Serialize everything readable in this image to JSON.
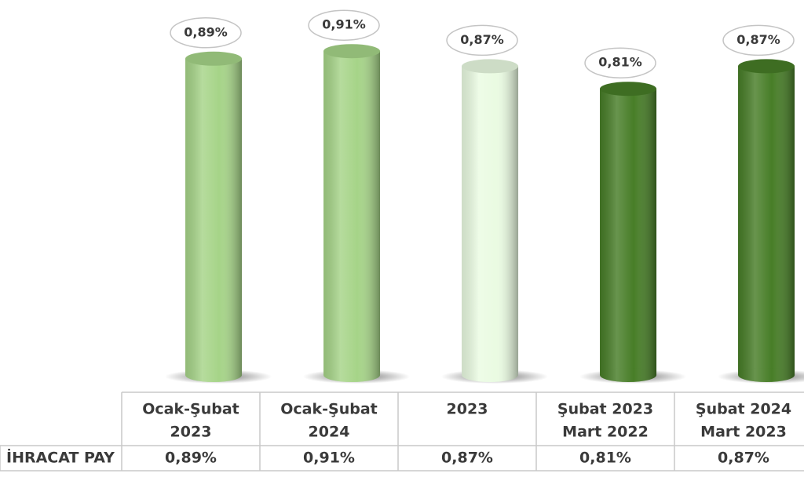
{
  "chart_data": {
    "type": "bar",
    "categories": [
      [
        "Ocak-Şubat",
        "2023"
      ],
      [
        "Ocak-Şubat",
        "2024"
      ],
      [
        "2023"
      ],
      [
        "Şubat 2023",
        "Mart 2022"
      ],
      [
        "Şubat 2024",
        "Mart 2023"
      ]
    ],
    "row_label": "İHRACAT PAY",
    "values": [
      0.89,
      0.91,
      0.87,
      0.81,
      0.87
    ],
    "value_labels": [
      "0,89%",
      "0,91%",
      "0,87%",
      "0,81%",
      "0,87%"
    ],
    "colors": [
      "#a6d488",
      "#a6d488",
      "#eafbe2",
      "#477d27",
      "#477d27"
    ],
    "ylim": [
      0.05,
      0.95
    ]
  }
}
